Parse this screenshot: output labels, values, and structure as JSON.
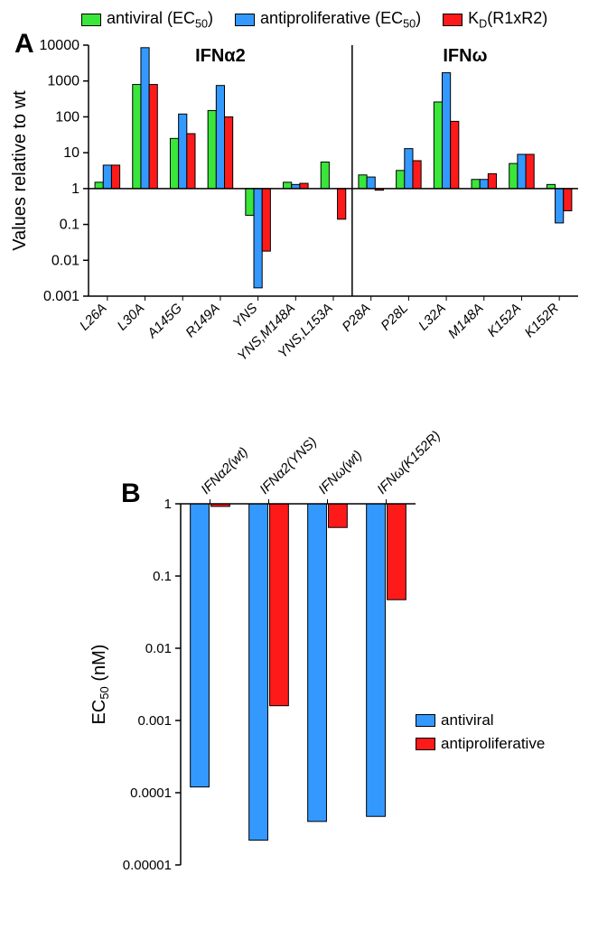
{
  "legend_top": {
    "items": [
      {
        "label": "antiviral (EC",
        "sub": "50",
        "tail": ")",
        "color": "#39e639"
      },
      {
        "label": "antiproliferative (EC",
        "sub": "50",
        "tail": ")",
        "color": "#3399ff"
      },
      {
        "label": "K",
        "sub": "D",
        "tail": "(R1xR2)",
        "color": "#ff1a1a"
      }
    ]
  },
  "panelA": {
    "label": "A",
    "ylabel": "Values relative to wt",
    "yticks": [
      0.001,
      0.01,
      0.1,
      1,
      10,
      100,
      1000,
      10000
    ],
    "ytick_labels": [
      "0.001",
      "0.01",
      "0.1",
      "1",
      "10",
      "100",
      "1000",
      "10000"
    ],
    "ylim": [
      0.001,
      10000
    ],
    "groups": [
      "IFNα2",
      "IFNω"
    ],
    "categories": [
      "L26A",
      "L30A",
      "A145G",
      "R149A",
      "YNS",
      "YNS,M148A",
      "YNS,L153A",
      "P28A",
      "P28L",
      "L32A",
      "M148A",
      "K152A",
      "K152R"
    ],
    "group_split_after": 7,
    "series": [
      {
        "name": "antiviral",
        "color": "#39e639",
        "values": [
          1.5,
          800,
          25,
          150,
          0.18,
          1.5,
          5.5,
          2.4,
          3.2,
          260,
          1.8,
          5.0,
          1.3
        ]
      },
      {
        "name": "antiproliferative",
        "color": "#3399ff",
        "values": [
          4.5,
          8500,
          120,
          750,
          0.0017,
          1.3,
          null,
          2.1,
          13,
          1700,
          1.8,
          9.0,
          0.11
        ]
      },
      {
        "name": "KD",
        "color": "#ff1a1a",
        "values": [
          4.5,
          800,
          34,
          100,
          0.018,
          1.4,
          0.14,
          0.9,
          6.0,
          75,
          2.6,
          9.0,
          0.24
        ]
      }
    ],
    "bg": "#ffffff",
    "axis_color": "#000000",
    "bar_stroke": "#000000"
  },
  "panelB": {
    "label": "B",
    "ylabel": "EC",
    "ylabel_sub": "50",
    "ylabel_tail": " (nM)",
    "yticks": [
      1e-05,
      0.0001,
      0.001,
      0.01,
      0.1,
      1
    ],
    "ytick_labels": [
      "0.00001",
      "0.0001",
      "0.001",
      "0.01",
      "0.1",
      "1"
    ],
    "ylim": [
      1e-05,
      1
    ],
    "categories": [
      "IFNα2(wt)",
      "IFNα2(YNS)",
      "IFNω(wt)",
      "IFNω(K152R)"
    ],
    "series": [
      {
        "name": "antiviral",
        "color": "#3399ff",
        "values": [
          0.00012,
          2.2e-05,
          4e-05,
          4.7e-05
        ]
      },
      {
        "name": "antiproliferative",
        "color": "#ff1a1a",
        "values": [
          0.92,
          0.0016,
          0.47,
          0.047
        ]
      }
    ],
    "bg": "#ffffff",
    "axis_color": "#000000",
    "bar_stroke": "#000000"
  },
  "legendB": {
    "items": [
      {
        "label": "antiviral",
        "color": "#3399ff"
      },
      {
        "label": "antiproliferative",
        "color": "#ff1a1a"
      }
    ]
  }
}
